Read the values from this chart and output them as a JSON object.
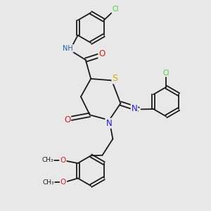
{
  "bg_color": "#e8e8e8",
  "bond_color": "#1a1a1a",
  "colors": {
    "N": "#2020cc",
    "O": "#cc2020",
    "S": "#ccaa00",
    "Cl": "#44cc44",
    "NH": "#2060a0",
    "C": "#1a1a1a"
  },
  "lw": 1.3,
  "fs": 7.0
}
